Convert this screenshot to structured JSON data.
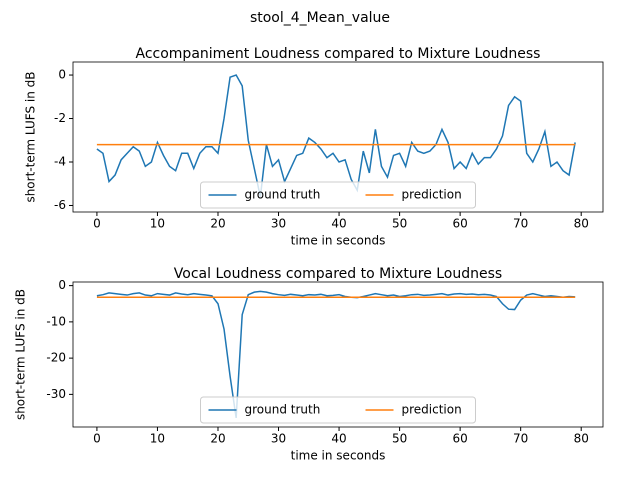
{
  "title": "stool_4_Mean_value",
  "chart_data": [
    {
      "type": "line",
      "title": "Accompaniment Loudness compared to Mixture Loudness",
      "x_label": "time in seconds",
      "y_label": "short-term LUFS in dB",
      "x": [
        0,
        1,
        2,
        3,
        4,
        5,
        6,
        7,
        8,
        9,
        10,
        11,
        12,
        13,
        14,
        15,
        16,
        17,
        18,
        19,
        20,
        21,
        22,
        23,
        24,
        25,
        26,
        27,
        28,
        29,
        30,
        31,
        32,
        33,
        34,
        35,
        36,
        37,
        38,
        39,
        40,
        41,
        42,
        43,
        44,
        45,
        46,
        47,
        48,
        49,
        50,
        51,
        52,
        53,
        54,
        55,
        56,
        57,
        58,
        59,
        60,
        61,
        62,
        63,
        64,
        65,
        66,
        67,
        68,
        69,
        70,
        71,
        72,
        73,
        74,
        75,
        76,
        77,
        78,
        79
      ],
      "series": [
        {
          "name": "ground truth",
          "color": "#1f77b4",
          "values": [
            -3.4,
            -3.6,
            -4.9,
            -4.6,
            -3.9,
            -3.6,
            -3.3,
            -3.5,
            -4.2,
            -4.0,
            -3.1,
            -3.7,
            -4.2,
            -4.4,
            -3.6,
            -3.6,
            -4.3,
            -3.6,
            -3.3,
            -3.3,
            -3.6,
            -2.0,
            -0.1,
            0,
            -0.5,
            -3.0,
            -4.3,
            -5.6,
            -3.2,
            -4.2,
            -3.9,
            -4.9,
            -4.3,
            -3.7,
            -3.6,
            -2.9,
            -3.1,
            -3.4,
            -3.8,
            -3.6,
            -4.0,
            -3.9,
            -4.8,
            -5.3,
            -3.5,
            -4.5,
            -2.5,
            -4.2,
            -4.7,
            -3.7,
            -3.6,
            -4.2,
            -3.1,
            -3.5,
            -3.6,
            -3.5,
            -3.2,
            -2.5,
            -3.1,
            -4.3,
            -4.0,
            -4.3,
            -3.6,
            -4.1,
            -3.8,
            -3.8,
            -3.4,
            -2.8,
            -1.4,
            -1.0,
            -1.2,
            -3.6,
            -4.0,
            -3.4,
            -2.6,
            -4.2,
            -4.0,
            -4.4,
            -4.6,
            -3.1
          ]
        },
        {
          "name": "prediction",
          "color": "#ff7f0e",
          "values": [
            -3.2,
            -3.2,
            -3.2,
            -3.2,
            -3.2,
            -3.2,
            -3.2,
            -3.2,
            -3.2,
            -3.2,
            -3.2,
            -3.2,
            -3.2,
            -3.2,
            -3.2,
            -3.2,
            -3.2,
            -3.2,
            -3.2,
            -3.2,
            -3.2,
            -3.2,
            -3.2,
            -3.2,
            -3.2,
            -3.2,
            -3.2,
            -3.2,
            -3.2,
            -3.2,
            -3.2,
            -3.2,
            -3.2,
            -3.2,
            -3.2,
            -3.2,
            -3.2,
            -3.2,
            -3.2,
            -3.2,
            -3.2,
            -3.2,
            -3.2,
            -3.2,
            -3.2,
            -3.2,
            -3.2,
            -3.2,
            -3.2,
            -3.2,
            -3.2,
            -3.2,
            -3.2,
            -3.2,
            -3.2,
            -3.2,
            -3.2,
            -3.2,
            -3.2,
            -3.2,
            -3.2,
            -3.2,
            -3.2,
            -3.2,
            -3.2,
            -3.2,
            -3.2,
            -3.2,
            -3.2,
            -3.2,
            -3.2,
            -3.2,
            -3.2,
            -3.2,
            -3.2,
            -3.2,
            -3.2,
            -3.2,
            -3.2,
            -3.2
          ]
        }
      ],
      "xlim": [
        -3.95,
        83.6
      ],
      "xticks": [
        0,
        10,
        20,
        30,
        40,
        50,
        60,
        70,
        80
      ],
      "ylim": [
        -6.3,
        0.6
      ],
      "yticks": [
        -6,
        -4,
        -2,
        0
      ],
      "legend": "lower center"
    },
    {
      "type": "line",
      "title": "Vocal Loudness compared to Mixture Loudness",
      "x_label": "time in seconds",
      "y_label": "short-term LUFS in dB",
      "x": [
        0,
        1,
        2,
        3,
        4,
        5,
        6,
        7,
        8,
        9,
        10,
        11,
        12,
        13,
        14,
        15,
        16,
        17,
        18,
        19,
        20,
        21,
        22,
        23,
        24,
        25,
        26,
        27,
        28,
        29,
        30,
        31,
        32,
        33,
        34,
        35,
        36,
        37,
        38,
        39,
        40,
        41,
        42,
        43,
        44,
        45,
        46,
        47,
        48,
        49,
        50,
        51,
        52,
        53,
        54,
        55,
        56,
        57,
        58,
        59,
        60,
        61,
        62,
        63,
        64,
        65,
        66,
        67,
        68,
        69,
        70,
        71,
        72,
        73,
        74,
        75,
        76,
        77,
        78,
        79
      ],
      "series": [
        {
          "name": "ground truth",
          "color": "#1f77b4",
          "values": [
            -2.8,
            -2.5,
            -2.0,
            -2.2,
            -2.4,
            -2.6,
            -2.2,
            -2.0,
            -2.6,
            -2.8,
            -2.2,
            -2.4,
            -2.6,
            -2.0,
            -2.3,
            -2.5,
            -2.2,
            -2.4,
            -2.6,
            -2.8,
            -5,
            -12,
            -25,
            -36.5,
            -8,
            -2.5,
            -1.8,
            -1.6,
            -1.8,
            -2.2,
            -2.5,
            -2.7,
            -2.4,
            -2.6,
            -2.8,
            -2.5,
            -2.6,
            -2.4,
            -2.8,
            -2.7,
            -2.5,
            -3.0,
            -3.2,
            -3.3,
            -3.0,
            -2.6,
            -2.2,
            -2.5,
            -2.8,
            -2.6,
            -3.0,
            -2.8,
            -2.5,
            -2.4,
            -2.7,
            -2.6,
            -2.4,
            -2.2,
            -2.6,
            -2.3,
            -2.2,
            -2.4,
            -2.3,
            -2.5,
            -2.4,
            -2.6,
            -3.0,
            -5.0,
            -6.5,
            -6.6,
            -4.0,
            -2.6,
            -2.2,
            -2.6,
            -3.0,
            -2.8,
            -3.0,
            -3.2,
            -3.0,
            -3.1
          ]
        },
        {
          "name": "prediction",
          "color": "#ff7f0e",
          "values": [
            -3.2,
            -3.2,
            -3.2,
            -3.2,
            -3.2,
            -3.2,
            -3.2,
            -3.2,
            -3.2,
            -3.2,
            -3.2,
            -3.2,
            -3.2,
            -3.2,
            -3.2,
            -3.2,
            -3.2,
            -3.2,
            -3.2,
            -3.2,
            -3.2,
            -3.2,
            -3.2,
            -3.2,
            -3.2,
            -3.2,
            -3.2,
            -3.2,
            -3.2,
            -3.2,
            -3.2,
            -3.2,
            -3.2,
            -3.2,
            -3.2,
            -3.2,
            -3.2,
            -3.2,
            -3.2,
            -3.2,
            -3.2,
            -3.2,
            -3.2,
            -3.2,
            -3.2,
            -3.2,
            -3.2,
            -3.2,
            -3.2,
            -3.2,
            -3.2,
            -3.2,
            -3.2,
            -3.2,
            -3.2,
            -3.2,
            -3.2,
            -3.2,
            -3.2,
            -3.2,
            -3.2,
            -3.2,
            -3.2,
            -3.2,
            -3.2,
            -3.2,
            -3.2,
            -3.2,
            -3.2,
            -3.2,
            -3.2,
            -3.2,
            -3.2,
            -3.2,
            -3.2,
            -3.2,
            -3.2,
            -3.2,
            -3.2,
            -3.2
          ]
        }
      ],
      "xlim": [
        -3.95,
        83.6
      ],
      "xticks": [
        0,
        10,
        20,
        30,
        40,
        50,
        60,
        70,
        80
      ],
      "ylim": [
        -39,
        1.0
      ],
      "yticks": [
        -30,
        -20,
        -10,
        0
      ],
      "legend": "lower center"
    }
  ]
}
